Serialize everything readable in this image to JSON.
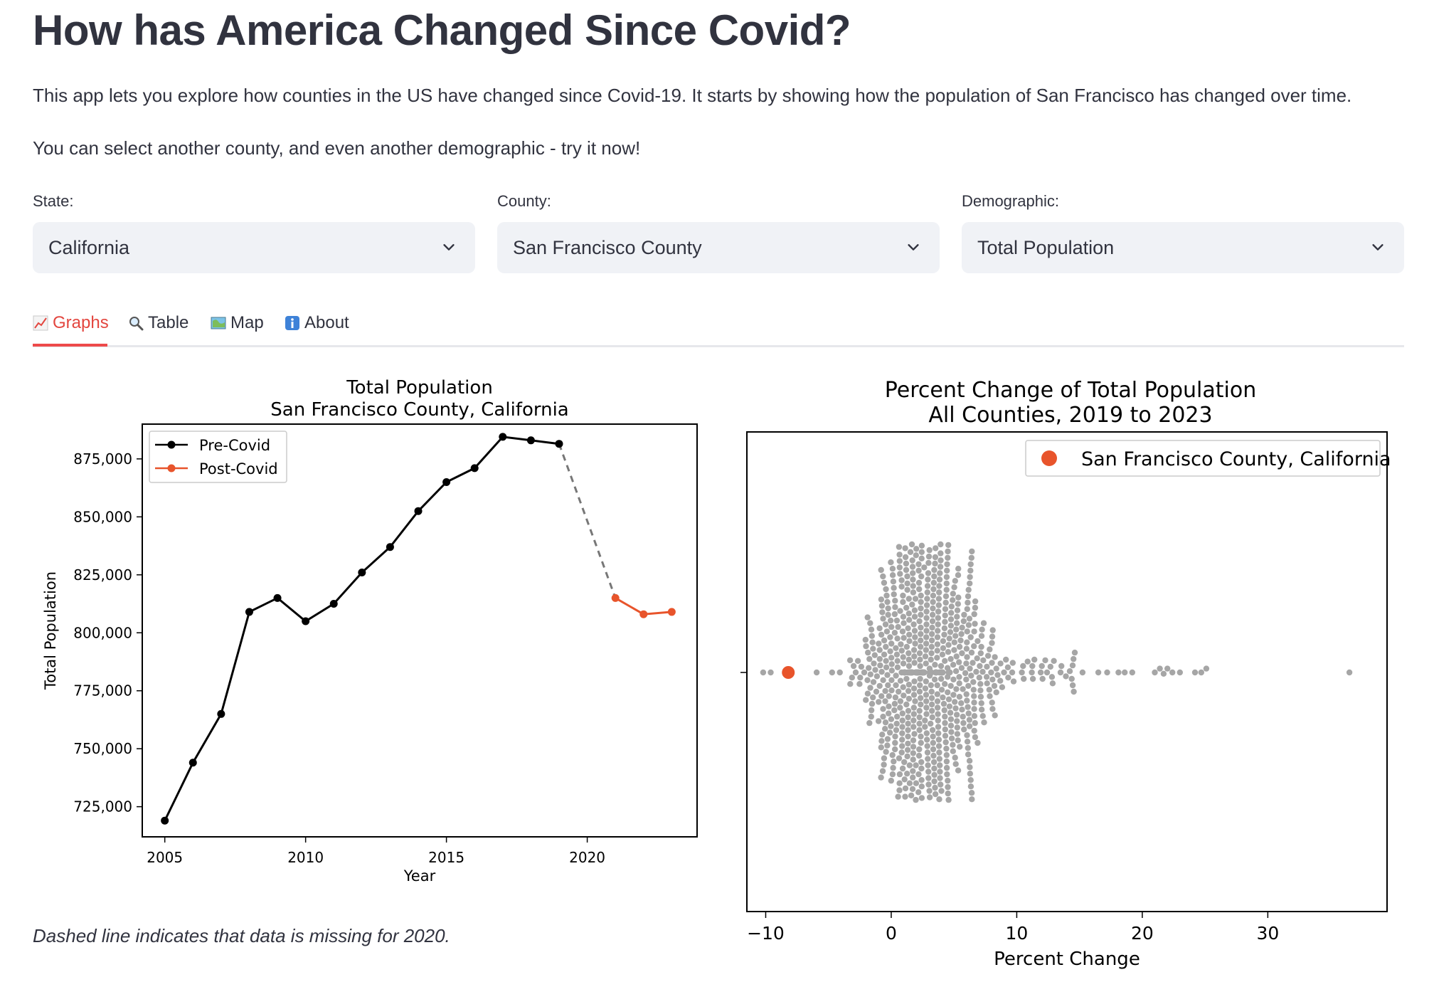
{
  "header": {
    "title": "How has America Changed Since Covid?",
    "intro": "This app lets you explore how counties in the US have changed since Covid-19. It starts by showing how the population of San Francisco has changed over time.",
    "prompt": "You can select another county, and even another demographic - try it now!"
  },
  "filters": {
    "state": {
      "label": "State:",
      "value": "California"
    },
    "county": {
      "label": "County:",
      "value": "San Francisco County"
    },
    "demographic": {
      "label": "Demographic:",
      "value": "Total Population"
    }
  },
  "tabs": [
    {
      "label": "Graphs",
      "icon": "chart-increasing-icon",
      "active": true
    },
    {
      "label": "Table",
      "icon": "magnifier-icon",
      "active": false
    },
    {
      "label": "Map",
      "icon": "map-icon",
      "active": false
    },
    {
      "label": "About",
      "icon": "info-icon",
      "active": false
    }
  ],
  "caption": "Dashed line indicates that data is missing for 2020.",
  "colors": {
    "accent": "#e3463f",
    "pre_covid": "#000000",
    "post_covid": "#e8542b",
    "swarm": "#a6a6a6"
  },
  "chart_data": [
    {
      "type": "line",
      "title": "Total Population",
      "subtitle": "San Francisco County, California",
      "xlabel": "Year",
      "ylabel": "Total Population",
      "xlim": [
        2004.2,
        2023.9
      ],
      "ylim": [
        712000,
        890000
      ],
      "xticks": [
        2005,
        2010,
        2015,
        2020
      ],
      "xtick_labels": [
        "2005",
        "2010",
        "2015",
        "2020"
      ],
      "yticks": [
        725000,
        750000,
        775000,
        800000,
        825000,
        850000,
        875000
      ],
      "ytick_labels": [
        "725,000",
        "750,000",
        "775,000",
        "800,000",
        "825,000",
        "850,000",
        "875,000"
      ],
      "legend_position": "top-left",
      "series": [
        {
          "name": "Pre-Covid",
          "color": "#000000",
          "x": [
            2005,
            2006,
            2007,
            2008,
            2009,
            2010,
            2011,
            2012,
            2013,
            2014,
            2015,
            2016,
            2017,
            2018,
            2019
          ],
          "y": [
            719000,
            744000,
            765000,
            809000,
            815000,
            805000,
            812500,
            826000,
            837000,
            852500,
            865000,
            871000,
            884500,
            883000,
            881500
          ]
        },
        {
          "name": "Post-Covid",
          "color": "#e8542b",
          "x": [
            2021,
            2022,
            2023
          ],
          "y": [
            815000,
            808000,
            809000
          ]
        }
      ],
      "gap_segment": {
        "style": "dashed",
        "color": "#777777",
        "from": [
          2019,
          881500
        ],
        "to": [
          2021,
          815000
        ]
      }
    },
    {
      "type": "scatter",
      "subtype": "swarm",
      "title": "Percent Change of Total Population",
      "subtitle": "All Counties, 2019 to 2023",
      "xlabel": "Percent Change",
      "xlim": [
        -11.5,
        39.5
      ],
      "xticks": [
        -10,
        0,
        10,
        20,
        30
      ],
      "xtick_labels": [
        "−10",
        "0",
        "10",
        "20",
        "30"
      ],
      "legend_position": "top-right",
      "highlight": {
        "name": "San Francisco County, California",
        "x": -8.2,
        "color": "#e8542b"
      },
      "swarm_color": "#a6a6a6",
      "distribution": {
        "center": 2.3,
        "spread": 3.6,
        "min": -10.2,
        "max": 36.5
      },
      "outliers": [
        -10.2,
        -9.6,
        16.5,
        17.2,
        18.1,
        18.6,
        19.2,
        21.0,
        21.4,
        21.7,
        22.0,
        22.4,
        23.0,
        24.2,
        24.7,
        25.1,
        36.5
      ]
    }
  ]
}
